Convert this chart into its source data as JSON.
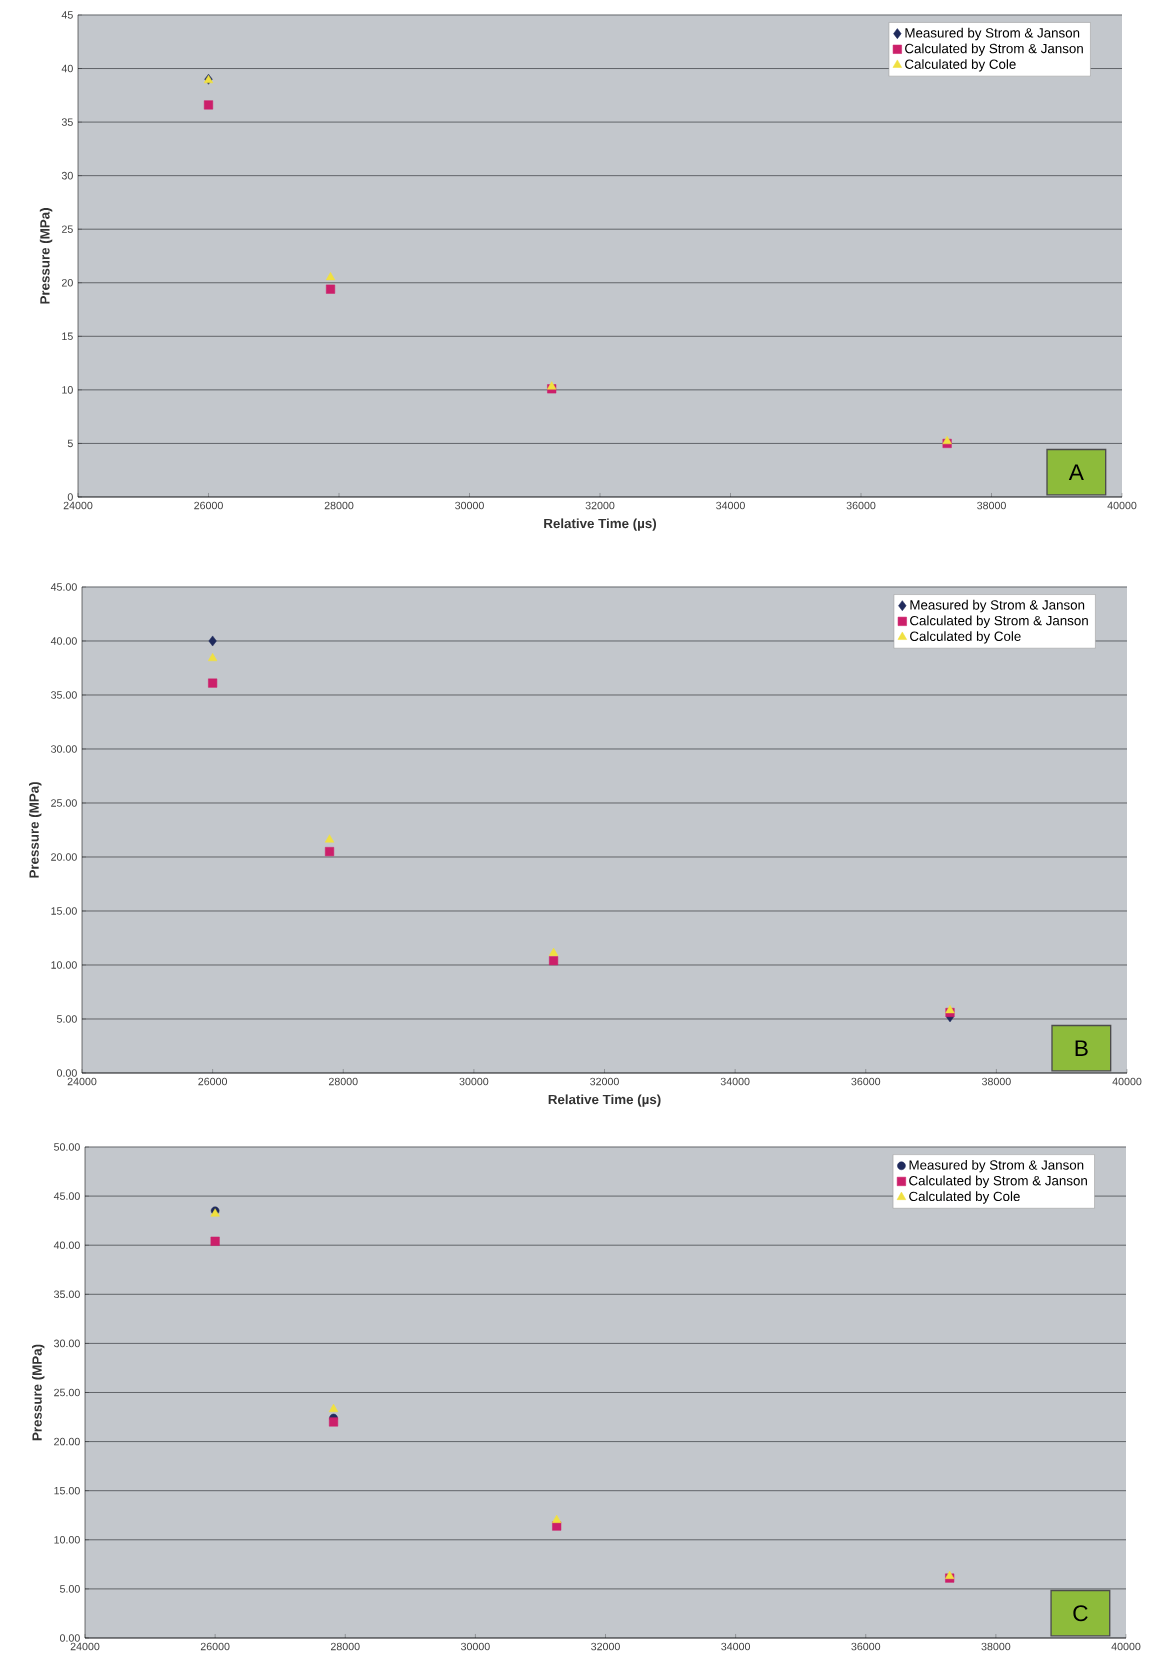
{
  "chart_data": [
    {
      "type": "scatter",
      "xlabel": "Relative Time (µs)",
      "ylabel": "Pressure (MPa)",
      "annotations": [
        "A"
      ],
      "x": [
        26000,
        27870,
        31260,
        37320
      ],
      "series": [
        {
          "name": "Measured by Strom & Janson",
          "color": "#1f2a5c",
          "marker": "diamond",
          "values": [
            39.0,
            null,
            null,
            null
          ]
        },
        {
          "name": "Calculated by Strom & Janson",
          "color": "#cc1f6a",
          "marker": "square",
          "values": [
            36.6,
            19.4,
            10.1,
            5.0
          ]
        },
        {
          "name": "Calculated by Cole",
          "color": "#f0e040",
          "marker": "triangle",
          "values": [
            38.9,
            20.5,
            10.3,
            5.2
          ]
        }
      ],
      "xlim": [
        24000,
        40000
      ],
      "xticks": [
        24000,
        26000,
        28000,
        30000,
        32000,
        34000,
        36000,
        38000,
        40000
      ],
      "ylim": [
        0,
        45
      ],
      "yticks": [
        0,
        5,
        10,
        15,
        20,
        25,
        30,
        35,
        40,
        45
      ],
      "grid": "y",
      "legend": "top right"
    },
    {
      "type": "scatter",
      "xlabel": "Relative Time (µs)",
      "ylabel": "Pressure (MPa)",
      "annotations": [
        "B"
      ],
      "x": [
        26000,
        27790,
        31220,
        37290
      ],
      "series": [
        {
          "name": "Measured by Strom & Janson",
          "color": "#1f2a5c",
          "marker": "diamond",
          "values": [
            40.0,
            null,
            null,
            5.2
          ]
        },
        {
          "name": "Calculated by Strom & Janson",
          "color": "#cc1f6a",
          "marker": "square",
          "values": [
            36.1,
            20.5,
            10.4,
            5.6
          ]
        },
        {
          "name": "Calculated by Cole",
          "color": "#f0e040",
          "marker": "triangle",
          "values": [
            38.4,
            21.6,
            11.1,
            5.8
          ]
        }
      ],
      "xlim": [
        24000,
        40000
      ],
      "xticks": [
        24000,
        26000,
        28000,
        30000,
        32000,
        34000,
        36000,
        38000,
        40000
      ],
      "ylim": [
        0,
        45
      ],
      "yticks": [
        {
          "value": 0,
          "label": "0.00"
        },
        {
          "value": 5,
          "label": "5.00"
        },
        {
          "value": 10,
          "label": "10.00"
        },
        {
          "value": 15,
          "label": "15.00"
        },
        {
          "value": 20,
          "label": "20.00"
        },
        {
          "value": 25,
          "label": "25.00"
        },
        {
          "value": 30,
          "label": "30.00"
        },
        {
          "value": 35,
          "label": "35.00"
        },
        {
          "value": 40,
          "label": "40.00"
        },
        {
          "value": 45,
          "label": "45.00"
        }
      ],
      "grid": "y",
      "legend": "top right"
    },
    {
      "type": "scatter",
      "ylabel": "Pressure (MPa)",
      "annotations": [
        "C"
      ],
      "x": [
        26000,
        27820,
        31250,
        37290
      ],
      "series": [
        {
          "name": "Measured by Strom & Janson",
          "color": "#1f2a5c",
          "marker": "circle",
          "values": [
            43.5,
            22.4,
            null,
            null
          ]
        },
        {
          "name": "Calculated by Strom & Janson",
          "color": "#cc1f6a",
          "marker": "square",
          "values": [
            40.4,
            22.0,
            11.4,
            6.1
          ]
        },
        {
          "name": "Calculated by Cole",
          "color": "#f0e040",
          "marker": "triangle",
          "values": [
            43.2,
            23.3,
            12.0,
            6.3
          ]
        }
      ],
      "xlim": [
        24000,
        40000
      ],
      "xticks": [
        24000,
        26000,
        28000,
        30000,
        32000,
        34000,
        36000,
        38000,
        40000
      ],
      "ylim": [
        0,
        50
      ],
      "yticks": [
        {
          "value": 0,
          "label": "0.00"
        },
        {
          "value": 5,
          "label": "5.00"
        },
        {
          "value": 10,
          "label": "10.00"
        },
        {
          "value": 15,
          "label": "15.00"
        },
        {
          "value": 20,
          "label": "20.00"
        },
        {
          "value": 25,
          "label": "25.00"
        },
        {
          "value": 30,
          "label": "30.00"
        },
        {
          "value": 35,
          "label": "35.00"
        },
        {
          "value": 40,
          "label": "40.00"
        },
        {
          "value": 45,
          "label": "45.00"
        },
        {
          "value": 50,
          "label": "50.00"
        }
      ],
      "grid": "y",
      "legend": "top right"
    }
  ]
}
